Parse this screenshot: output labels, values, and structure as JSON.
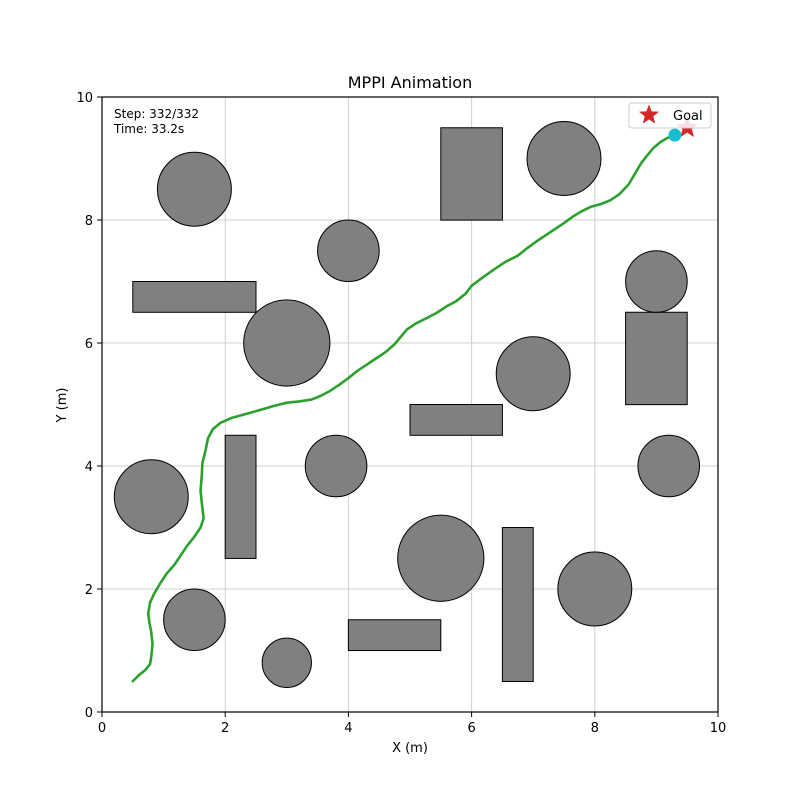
{
  "chart_data": {
    "type": "line",
    "title": "MPPI Animation",
    "xlabel": "X (m)",
    "ylabel": "Y (m)",
    "xlim": [
      0,
      10
    ],
    "ylim": [
      0,
      10
    ],
    "xticks": [
      0,
      2,
      4,
      6,
      8,
      10
    ],
    "yticks": [
      0,
      2,
      4,
      6,
      8,
      10
    ],
    "grid": true,
    "legend_position": "top-right",
    "info_lines": [
      "Step: 332/332",
      "Time: 33.2s"
    ],
    "legend": [
      {
        "label": "Goal",
        "marker": "star",
        "color": "#d62728"
      }
    ],
    "goal": {
      "x": 9.5,
      "y": 9.5
    },
    "robot": {
      "x": 9.3,
      "y": 9.38,
      "color": "#17becf"
    },
    "path": {
      "color": "#2ca02c",
      "points": [
        [
          0.5,
          0.5
        ],
        [
          0.6,
          0.6
        ],
        [
          0.7,
          0.68
        ],
        [
          0.78,
          0.78
        ],
        [
          0.8,
          0.9
        ],
        [
          0.82,
          1.1
        ],
        [
          0.8,
          1.3
        ],
        [
          0.77,
          1.45
        ],
        [
          0.75,
          1.6
        ],
        [
          0.78,
          1.78
        ],
        [
          0.85,
          1.93
        ],
        [
          0.95,
          2.1
        ],
        [
          1.05,
          2.25
        ],
        [
          1.18,
          2.4
        ],
        [
          1.28,
          2.55
        ],
        [
          1.38,
          2.7
        ],
        [
          1.5,
          2.85
        ],
        [
          1.6,
          3.0
        ],
        [
          1.65,
          3.15
        ],
        [
          1.62,
          3.4
        ],
        [
          1.6,
          3.6
        ],
        [
          1.62,
          3.85
        ],
        [
          1.63,
          4.05
        ],
        [
          1.68,
          4.25
        ],
        [
          1.72,
          4.45
        ],
        [
          1.8,
          4.6
        ],
        [
          1.92,
          4.7
        ],
        [
          2.1,
          4.78
        ],
        [
          2.35,
          4.85
        ],
        [
          2.6,
          4.92
        ],
        [
          2.8,
          4.98
        ],
        [
          3.0,
          5.03
        ],
        [
          3.2,
          5.05
        ],
        [
          3.4,
          5.08
        ],
        [
          3.55,
          5.14
        ],
        [
          3.7,
          5.22
        ],
        [
          3.85,
          5.32
        ],
        [
          4.0,
          5.43
        ],
        [
          4.15,
          5.55
        ],
        [
          4.3,
          5.65
        ],
        [
          4.45,
          5.75
        ],
        [
          4.6,
          5.85
        ],
        [
          4.75,
          5.98
        ],
        [
          4.85,
          6.1
        ],
        [
          4.95,
          6.22
        ],
        [
          5.1,
          6.32
        ],
        [
          5.3,
          6.42
        ],
        [
          5.45,
          6.5
        ],
        [
          5.6,
          6.6
        ],
        [
          5.75,
          6.68
        ],
        [
          5.9,
          6.8
        ],
        [
          6.0,
          6.93
        ],
        [
          6.2,
          7.08
        ],
        [
          6.4,
          7.22
        ],
        [
          6.55,
          7.32
        ],
        [
          6.75,
          7.42
        ],
        [
          6.9,
          7.54
        ],
        [
          7.05,
          7.65
        ],
        [
          7.2,
          7.75
        ],
        [
          7.35,
          7.85
        ],
        [
          7.5,
          7.95
        ],
        [
          7.65,
          8.06
        ],
        [
          7.8,
          8.15
        ],
        [
          7.95,
          8.22
        ],
        [
          8.1,
          8.26
        ],
        [
          8.25,
          8.32
        ],
        [
          8.4,
          8.42
        ],
        [
          8.55,
          8.58
        ],
        [
          8.65,
          8.75
        ],
        [
          8.75,
          8.92
        ],
        [
          8.85,
          9.05
        ],
        [
          8.95,
          9.17
        ],
        [
          9.07,
          9.27
        ],
        [
          9.17,
          9.33
        ],
        [
          9.3,
          9.38
        ]
      ]
    },
    "obstacles": {
      "color": "#808080",
      "circles": [
        {
          "cx": 1.5,
          "cy": 8.5,
          "r": 0.6
        },
        {
          "cx": 4.0,
          "cy": 7.5,
          "r": 0.5
        },
        {
          "cx": 7.5,
          "cy": 9.0,
          "r": 0.6
        },
        {
          "cx": 9.0,
          "cy": 7.0,
          "r": 0.5
        },
        {
          "cx": 3.0,
          "cy": 6.0,
          "r": 0.7
        },
        {
          "cx": 7.0,
          "cy": 5.5,
          "r": 0.6
        },
        {
          "cx": 0.8,
          "cy": 3.5,
          "r": 0.6
        },
        {
          "cx": 3.8,
          "cy": 4.0,
          "r": 0.5
        },
        {
          "cx": 9.2,
          "cy": 4.0,
          "r": 0.5
        },
        {
          "cx": 5.5,
          "cy": 2.5,
          "r": 0.7
        },
        {
          "cx": 8.0,
          "cy": 2.0,
          "r": 0.6
        },
        {
          "cx": 1.5,
          "cy": 1.5,
          "r": 0.5
        },
        {
          "cx": 3.0,
          "cy": 0.8,
          "r": 0.4
        }
      ],
      "rectangles": [
        {
          "x": 5.5,
          "y": 8.0,
          "w": 1.0,
          "h": 1.5
        },
        {
          "x": 0.5,
          "y": 6.5,
          "w": 2.0,
          "h": 0.5
        },
        {
          "x": 8.5,
          "y": 5.0,
          "w": 1.0,
          "h": 1.5
        },
        {
          "x": 5.0,
          "y": 4.5,
          "w": 1.5,
          "h": 0.5
        },
        {
          "x": 2.0,
          "y": 2.5,
          "w": 0.5,
          "h": 2.0
        },
        {
          "x": 6.5,
          "y": 0.5,
          "w": 0.5,
          "h": 2.5
        },
        {
          "x": 4.0,
          "y": 1.0,
          "w": 1.5,
          "h": 0.5
        }
      ]
    }
  }
}
